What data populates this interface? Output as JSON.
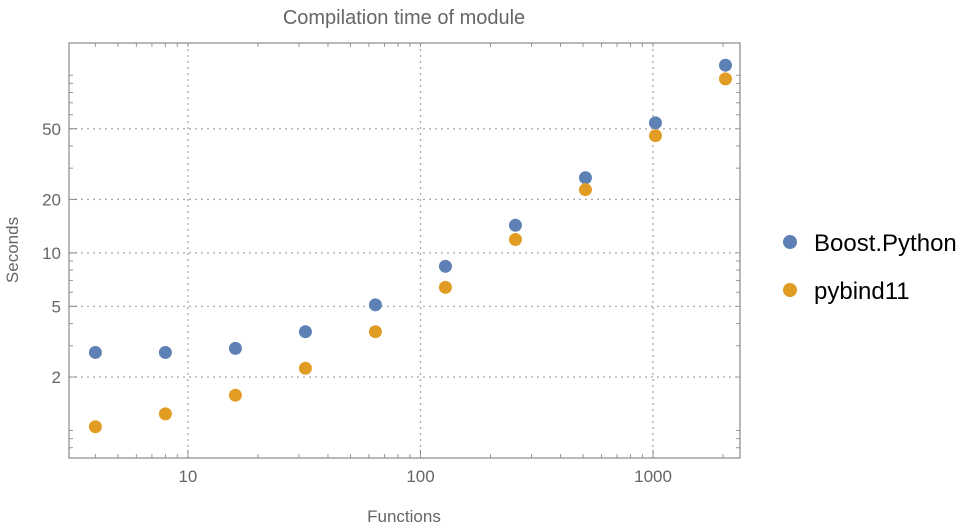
{
  "chart_data": {
    "type": "scatter",
    "title": "Compilation time of module",
    "xlabel": "Functions",
    "ylabel": "Seconds",
    "xscale": "log",
    "yscale": "log",
    "xlim": [
      3.08,
      2365
    ],
    "ylim": [
      0.7,
      152
    ],
    "xticks": [
      10,
      100,
      1000
    ],
    "xtick_labels": [
      "10",
      "100",
      "1000"
    ],
    "yticks": [
      2,
      5,
      10,
      20,
      50
    ],
    "ytick_labels": [
      "2",
      "5",
      "10",
      "20",
      "50"
    ],
    "grid": true,
    "legend": "right",
    "x": [
      4,
      8,
      16,
      32,
      64,
      128,
      256,
      512,
      1024,
      2048
    ],
    "series": [
      {
        "name": "Boost.Python",
        "color": "#5e81b5",
        "values": [
          2.75,
          2.75,
          2.9,
          3.6,
          5.1,
          8.4,
          14.3,
          26.5,
          54,
          114
        ]
      },
      {
        "name": "pybind11",
        "color": "#e19c24",
        "values": [
          1.05,
          1.24,
          1.58,
          2.24,
          3.6,
          6.4,
          11.9,
          22.7,
          45.7,
          95.5
        ]
      }
    ]
  }
}
